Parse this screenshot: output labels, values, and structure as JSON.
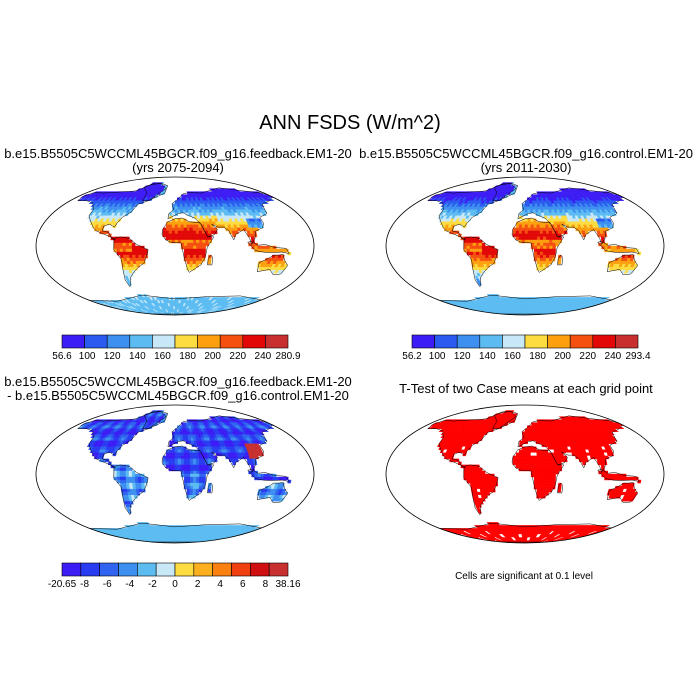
{
  "page": {
    "title": "ANN FSDS (W/m^2)"
  },
  "colors": {
    "ocean": "#ffffff",
    "map_outline": "#000000",
    "significant": "#ff0000",
    "land_default": "#e23020"
  },
  "panels": [
    {
      "id": "feedback",
      "title_line1": "b.e15.B5505C5WCCML45BGCR.f09_g16.feedback.EM1-20",
      "title_line2": "(yrs 2075-2094)"
    },
    {
      "id": "control",
      "title_line1": "b.e15.B5505C5WCCML45BGCR.f09_g16.control.EM1-20",
      "title_line2": "(yrs 2011-2030)"
    },
    {
      "id": "difference",
      "title_line1": "b.e15.B5505C5WCCML45BGCR.f09_g16.feedback.EM1-20",
      "title_line2": "- b.e15.B5505C5WCCML45BGCR.f09_g16.control.EM1-20"
    },
    {
      "id": "ttest",
      "title_line1": "T-Test of two Case means at each grid point",
      "note": "Cells are significant at 0.1 level"
    }
  ],
  "chart_data": [
    {
      "type": "heatmap",
      "panel": "feedback",
      "projection": "Robinson",
      "colorbar": {
        "colors": [
          "#3c1cf5",
          "#2a5af0",
          "#3d8ff0",
          "#5cbcf2",
          "#c8e8f8",
          "#fcdc40",
          "#fca010",
          "#f55010",
          "#e20808",
          "#c83030"
        ],
        "labels": [
          "56.6",
          "100",
          "120",
          "140",
          "160",
          "180",
          "200",
          "220",
          "240",
          "280.9"
        ],
        "min": 56.6,
        "max": 280.9,
        "levels": [
          100,
          120,
          140,
          160,
          180,
          200,
          220,
          240
        ]
      }
    },
    {
      "type": "heatmap",
      "panel": "control",
      "projection": "Robinson",
      "colorbar": {
        "colors": [
          "#3c1cf5",
          "#2a5af0",
          "#3d8ff0",
          "#5cbcf2",
          "#c8e8f8",
          "#fcdc40",
          "#fca010",
          "#f55010",
          "#e20808",
          "#c83030"
        ],
        "labels": [
          "56.2",
          "100",
          "120",
          "140",
          "160",
          "180",
          "200",
          "220",
          "240",
          "293.4"
        ],
        "min": 56.2,
        "max": 293.4,
        "levels": [
          100,
          120,
          140,
          160,
          180,
          200,
          220,
          240
        ]
      }
    },
    {
      "type": "heatmap",
      "panel": "difference",
      "projection": "Robinson",
      "colorbar": {
        "colors": [
          "#3c1cf5",
          "#2a3cf2",
          "#3064f0",
          "#3d8ff0",
          "#5cbcf2",
          "#c8e8f8",
          "#fcdc40",
          "#fcb020",
          "#fa8010",
          "#f04010",
          "#d01010",
          "#c83030"
        ],
        "labels": [
          "-20.65",
          "-8",
          "-6",
          "-4",
          "-2",
          "0",
          "2",
          "4",
          "6",
          "8",
          "38.16"
        ],
        "min": -20.65,
        "max": 38.16,
        "levels": [
          -10,
          -8,
          -6,
          -4,
          -2,
          0,
          2,
          4,
          6,
          8,
          10
        ]
      }
    },
    {
      "type": "heatmap",
      "panel": "ttest",
      "projection": "Robinson",
      "significance_level": 0.1
    }
  ]
}
